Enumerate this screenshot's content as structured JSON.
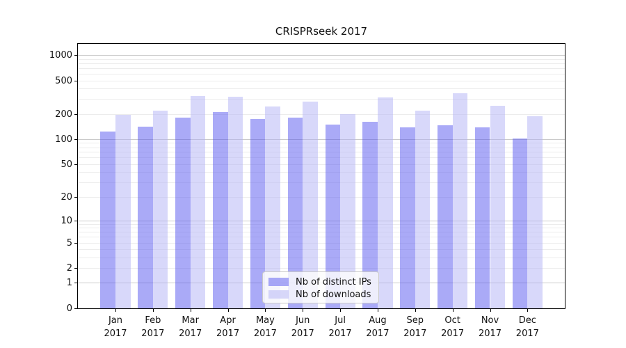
{
  "chart_data": {
    "type": "bar",
    "title": "CRISPRseek 2017",
    "year": "2017",
    "categories": [
      "Jan",
      "Feb",
      "Mar",
      "Apr",
      "May",
      "Jun",
      "Jul",
      "Aug",
      "Sep",
      "Oct",
      "Nov",
      "Dec"
    ],
    "series": [
      {
        "name": "Nb of distinct IPs",
        "color": "#aaaaf3",
        "rgba": "rgba(85,85,239,0.5)",
        "values": [
          124,
          141,
          181,
          209,
          175,
          179,
          148,
          160,
          139,
          147,
          139,
          102
        ]
      },
      {
        "name": "Nb of downloads",
        "color": "#d8d8fa",
        "rgba": "rgba(177,177,245,0.5)",
        "values": [
          193,
          220,
          326,
          319,
          246,
          278,
          198,
          312,
          220,
          355,
          250,
          188
        ]
      }
    ],
    "y_ticks": [
      0,
      1,
      2,
      5,
      10,
      20,
      50,
      100,
      200,
      500,
      1000
    ],
    "y_scale": "log10(1+y)",
    "ylim": [
      0,
      1380
    ],
    "grid": "horizontal, log minor + major decades",
    "legend_position": "lower center inside plot",
    "axis_color": "#000000",
    "grid_major_color": "#c9c9c9",
    "grid_minor_color": "#ececec"
  }
}
